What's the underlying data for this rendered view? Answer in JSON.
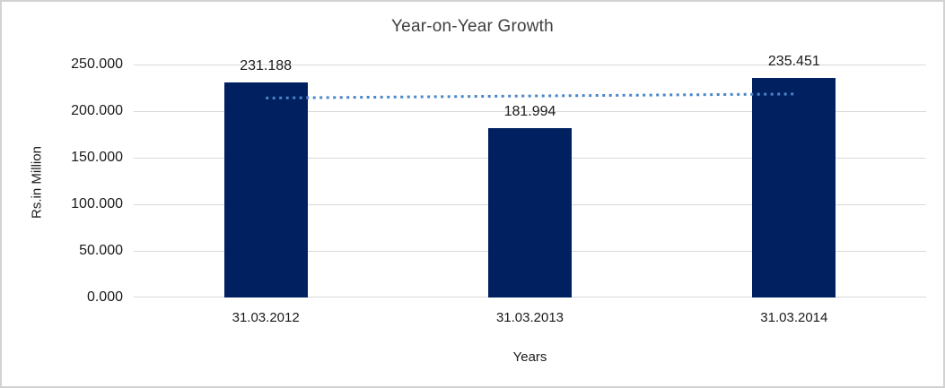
{
  "chart_data": {
    "type": "bar",
    "title": "Year-on-Year Growth",
    "xlabel": "Years",
    "ylabel": "Rs.in Million",
    "categories": [
      "31.03.2012",
      "31.03.2013",
      "31.03.2014"
    ],
    "values": [
      231.188,
      181.994,
      235.451
    ],
    "data_labels": [
      "231.188",
      "181.994",
      "235.451"
    ],
    "y_ticks": [
      {
        "value": 250,
        "label": "250.000"
      },
      {
        "value": 200,
        "label": "200.000"
      },
      {
        "value": 150,
        "label": "150.000"
      },
      {
        "value": 100,
        "label": "100.000"
      },
      {
        "value": 50,
        "label": "50.000"
      },
      {
        "value": 0,
        "label": "0.000"
      }
    ],
    "ylim": [
      0,
      250
    ],
    "grid": true,
    "legend": "none",
    "colors": {
      "bar": "#002060",
      "trendline": "#4a86c8",
      "gridline": "#d9d9d9",
      "text": "#1a1a1a",
      "title_text": "#3f3f3f",
      "frame_border": "#d2d2d2",
      "background": "#ffffff"
    },
    "trendline": {
      "type": "linear",
      "style": "dotted",
      "values_at_categories": [
        214.06,
        216.21,
        218.34
      ]
    }
  }
}
